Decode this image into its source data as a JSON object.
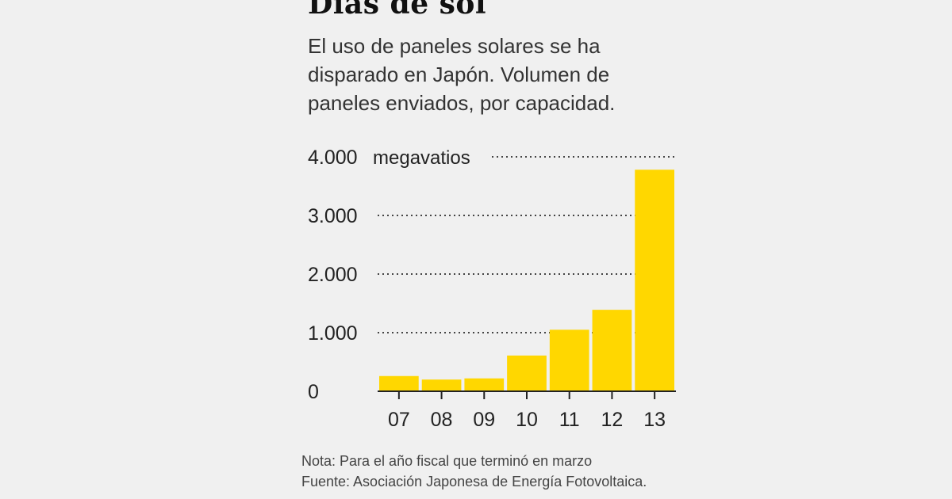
{
  "title": "Días de sol",
  "subtitle_lines": [
    "El uso de paneles solares se ha",
    "disparado en Japón. Volumen de",
    "paneles enviados, por capacidad."
  ],
  "chart_data": {
    "type": "bar",
    "title": "Días de sol",
    "unit_label": "megavatios",
    "categories": [
      "07",
      "08",
      "09",
      "10",
      "11",
      "12",
      "13"
    ],
    "values": [
      260,
      200,
      220,
      610,
      1050,
      1390,
      3780
    ],
    "y_ticks": [
      0,
      1000,
      2000,
      3000,
      4000
    ],
    "y_tick_labels": [
      "0",
      "1.000",
      "2.000",
      "3.000",
      "4.000"
    ],
    "ylim": [
      0,
      4000
    ],
    "xlabel": "",
    "ylabel": "megavatios",
    "grid": true,
    "bar_color": "#ffd700",
    "grid_color": "#444444"
  },
  "notes": {
    "nota": "Nota: Para el año fiscal que terminó en marzo",
    "fuente": "Fuente: Asociación Japonesa de Energía Fotovoltaica."
  }
}
